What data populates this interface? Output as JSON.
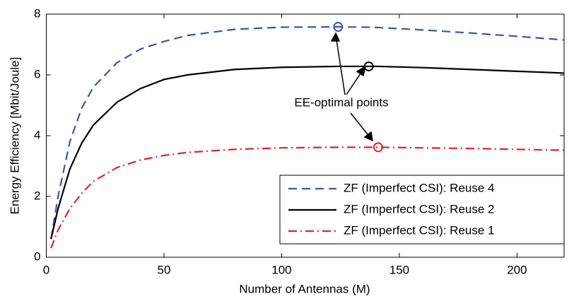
{
  "chart_data": {
    "type": "line",
    "xlabel": "Number of Antennas (M)",
    "ylabel": "Energy Efficiency [Mbit/Joule]",
    "annotation": "EE-optimal points",
    "x": [
      2,
      5,
      10,
      15,
      20,
      30,
      40,
      50,
      60,
      80,
      100,
      124,
      137,
      141,
      160,
      180,
      200,
      220
    ],
    "series": [
      {
        "name": "ZF (Imperfect CSI): Reuse 4",
        "color": "#3a55a8",
        "dash": "dashed",
        "values": [
          0.6,
          2.0,
          3.8,
          4.9,
          5.6,
          6.4,
          6.85,
          7.1,
          7.3,
          7.5,
          7.57,
          7.58,
          7.57,
          7.56,
          7.48,
          7.38,
          7.27,
          7.15
        ],
        "optimum": {
          "x": 124,
          "y": 7.58
        }
      },
      {
        "name": "ZF (Imperfect CSI): Reuse 2",
        "color": "#000000",
        "dash": "solid",
        "values": [
          0.6,
          1.6,
          2.9,
          3.75,
          4.35,
          5.1,
          5.55,
          5.85,
          6.0,
          6.18,
          6.25,
          6.28,
          6.28,
          6.28,
          6.24,
          6.18,
          6.12,
          6.06
        ],
        "optimum": {
          "x": 137,
          "y": 6.28
        }
      },
      {
        "name": "ZF (Imperfect CSI): Reuse 1",
        "color": "#e5202a",
        "dash": "dashdot",
        "values": [
          0.3,
          0.9,
          1.6,
          2.1,
          2.5,
          2.95,
          3.2,
          3.35,
          3.45,
          3.55,
          3.6,
          3.62,
          3.62,
          3.62,
          3.6,
          3.58,
          3.55,
          3.52
        ],
        "optimum": {
          "x": 141,
          "y": 3.62
        }
      }
    ],
    "xlim": [
      0,
      220
    ],
    "xticks": [
      0,
      50,
      100,
      150,
      200
    ],
    "ylim": [
      0,
      8
    ],
    "yticks": [
      0,
      2,
      4,
      6,
      8
    ],
    "legend": "lower right"
  }
}
